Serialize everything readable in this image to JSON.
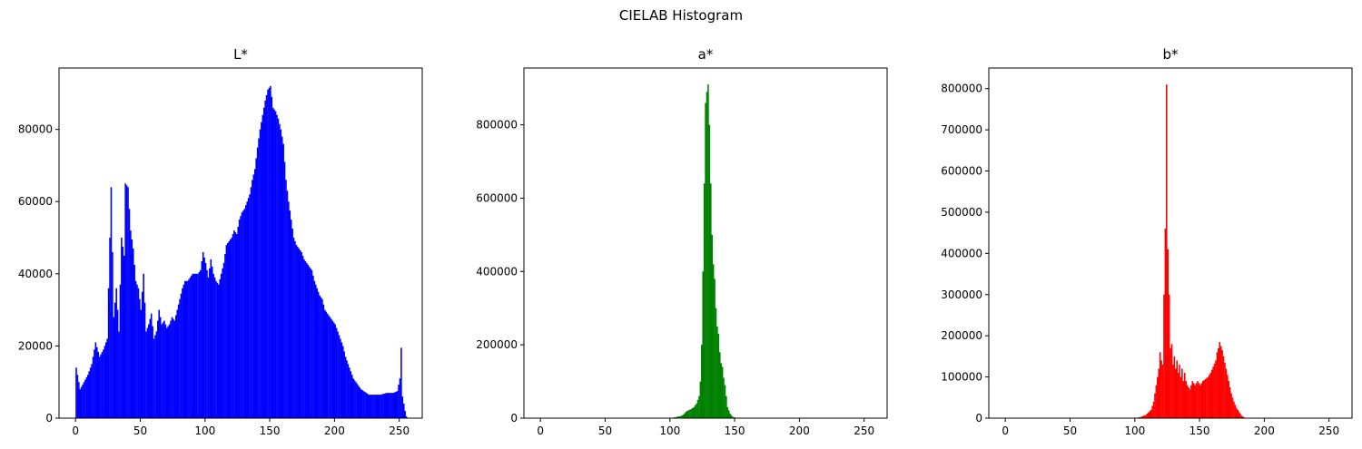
{
  "figure": {
    "title": "CIELAB Histogram"
  },
  "chart_data": [
    {
      "type": "bar",
      "title": "L*",
      "xlabel": "",
      "ylabel": "",
      "color": "#0000ff",
      "xlim": [
        -12.75,
        267.75
      ],
      "ylim": [
        0,
        97000
      ],
      "xticks": [
        0,
        50,
        100,
        150,
        200,
        250
      ],
      "yticks": [
        0,
        20000,
        40000,
        60000,
        80000
      ],
      "bin_width": 1,
      "profile": [
        [
          0,
          14000
        ],
        [
          3,
          8000
        ],
        [
          6,
          10000
        ],
        [
          9,
          12000
        ],
        [
          12,
          15000
        ],
        [
          15,
          21000
        ],
        [
          18,
          17000
        ],
        [
          21,
          19000
        ],
        [
          24,
          22000
        ],
        [
          27,
          64000
        ],
        [
          29,
          28000
        ],
        [
          31,
          36000
        ],
        [
          33,
          24000
        ],
        [
          35,
          50000
        ],
        [
          37,
          45000
        ],
        [
          38,
          65000
        ],
        [
          40,
          64000
        ],
        [
          42,
          52000
        ],
        [
          44,
          47000
        ],
        [
          46,
          38000
        ],
        [
          48,
          36000
        ],
        [
          50,
          30000
        ],
        [
          52,
          40000
        ],
        [
          54,
          24000
        ],
        [
          56,
          26000
        ],
        [
          58,
          29000
        ],
        [
          60,
          22000
        ],
        [
          62,
          24000
        ],
        [
          64,
          30000
        ],
        [
          66,
          26000
        ],
        [
          68,
          27000
        ],
        [
          70,
          25000
        ],
        [
          72,
          26000
        ],
        [
          74,
          28000
        ],
        [
          76,
          27000
        ],
        [
          78,
          30000
        ],
        [
          80,
          33000
        ],
        [
          82,
          36000
        ],
        [
          84,
          38000
        ],
        [
          86,
          38000
        ],
        [
          88,
          39000
        ],
        [
          90,
          40000
        ],
        [
          92,
          40000
        ],
        [
          94,
          40000
        ],
        [
          96,
          41000
        ],
        [
          98,
          46000
        ],
        [
          100,
          43000
        ],
        [
          102,
          39000
        ],
        [
          104,
          44000
        ],
        [
          106,
          40000
        ],
        [
          108,
          38000
        ],
        [
          110,
          37000
        ],
        [
          112,
          40000
        ],
        [
          114,
          43000
        ],
        [
          116,
          48000
        ],
        [
          118,
          49000
        ],
        [
          120,
          50000
        ],
        [
          122,
          52000
        ],
        [
          124,
          51000
        ],
        [
          126,
          55000
        ],
        [
          128,
          57000
        ],
        [
          130,
          58000
        ],
        [
          132,
          60000
        ],
        [
          134,
          62000
        ],
        [
          136,
          66000
        ],
        [
          138,
          69000
        ],
        [
          140,
          75000
        ],
        [
          142,
          80000
        ],
        [
          144,
          84000
        ],
        [
          146,
          88000
        ],
        [
          148,
          91000
        ],
        [
          150,
          92000
        ],
        [
          152,
          86000
        ],
        [
          154,
          85000
        ],
        [
          156,
          83000
        ],
        [
          158,
          80000
        ],
        [
          160,
          76000
        ],
        [
          162,
          66000
        ],
        [
          164,
          60000
        ],
        [
          166,
          55000
        ],
        [
          168,
          50000
        ],
        [
          170,
          48000
        ],
        [
          172,
          47000
        ],
        [
          174,
          46000
        ],
        [
          176,
          44000
        ],
        [
          178,
          43000
        ],
        [
          180,
          42000
        ],
        [
          182,
          41000
        ],
        [
          184,
          38000
        ],
        [
          186,
          36000
        ],
        [
          188,
          34000
        ],
        [
          190,
          33000
        ],
        [
          192,
          30000
        ],
        [
          194,
          29000
        ],
        [
          196,
          28000
        ],
        [
          198,
          27000
        ],
        [
          200,
          26000
        ],
        [
          202,
          24000
        ],
        [
          204,
          22000
        ],
        [
          206,
          20000
        ],
        [
          208,
          17000
        ],
        [
          210,
          15000
        ],
        [
          212,
          13000
        ],
        [
          214,
          11000
        ],
        [
          216,
          10000
        ],
        [
          218,
          9000
        ],
        [
          220,
          8000
        ],
        [
          222,
          7500
        ],
        [
          224,
          7000
        ],
        [
          226,
          6500
        ],
        [
          230,
          6500
        ],
        [
          235,
          6500
        ],
        [
          240,
          7000
        ],
        [
          245,
          7000
        ],
        [
          248,
          7500
        ],
        [
          250,
          11000
        ],
        [
          251,
          19500
        ],
        [
          252,
          6000
        ],
        [
          254,
          2000
        ],
        [
          255,
          500
        ]
      ]
    },
    {
      "type": "bar",
      "title": "a*",
      "xlabel": "",
      "ylabel": "",
      "color": "#008000",
      "xlim": [
        -12.75,
        267.75
      ],
      "ylim": [
        0,
        955000
      ],
      "xticks": [
        0,
        50,
        100,
        150,
        200,
        250
      ],
      "yticks": [
        0,
        200000,
        400000,
        600000,
        800000
      ],
      "bin_width": 1,
      "profile": [
        [
          0,
          0
        ],
        [
          100,
          0
        ],
        [
          104,
          3000
        ],
        [
          108,
          6000
        ],
        [
          110,
          10000
        ],
        [
          112,
          18000
        ],
        [
          114,
          22000
        ],
        [
          116,
          25000
        ],
        [
          118,
          30000
        ],
        [
          120,
          40000
        ],
        [
          122,
          60000
        ],
        [
          123,
          100000
        ],
        [
          124,
          200000
        ],
        [
          125,
          400000
        ],
        [
          126,
          640000
        ],
        [
          127,
          860000
        ],
        [
          128,
          890000
        ],
        [
          129,
          910000
        ],
        [
          130,
          800000
        ],
        [
          131,
          640000
        ],
        [
          132,
          500000
        ],
        [
          133,
          420000
        ],
        [
          134,
          380000
        ],
        [
          135,
          300000
        ],
        [
          136,
          250000
        ],
        [
          137,
          230000
        ],
        [
          138,
          180000
        ],
        [
          139,
          150000
        ],
        [
          140,
          140000
        ],
        [
          141,
          110000
        ],
        [
          142,
          90000
        ],
        [
          143,
          60000
        ],
        [
          144,
          30000
        ],
        [
          146,
          12000
        ],
        [
          148,
          4000
        ],
        [
          150,
          1000
        ],
        [
          152,
          0
        ],
        [
          255,
          0
        ]
      ]
    },
    {
      "type": "bar",
      "title": "b*",
      "xlabel": "",
      "ylabel": "",
      "color": "#ff0000",
      "xlim": [
        -12.75,
        267.75
      ],
      "ylim": [
        0,
        850000
      ],
      "xticks": [
        0,
        50,
        100,
        150,
        200,
        250
      ],
      "yticks": [
        0,
        100000,
        200000,
        300000,
        400000,
        500000,
        600000,
        700000,
        800000
      ],
      "bin_width": 1,
      "profile": [
        [
          0,
          0
        ],
        [
          100,
          0
        ],
        [
          104,
          3000
        ],
        [
          108,
          8000
        ],
        [
          112,
          20000
        ],
        [
          114,
          40000
        ],
        [
          116,
          80000
        ],
        [
          118,
          120000
        ],
        [
          119,
          160000
        ],
        [
          120,
          140000
        ],
        [
          121,
          130000
        ],
        [
          122,
          300000
        ],
        [
          123,
          460000
        ],
        [
          124,
          810000
        ],
        [
          125,
          410000
        ],
        [
          126,
          300000
        ],
        [
          127,
          170000
        ],
        [
          128,
          180000
        ],
        [
          129,
          130000
        ],
        [
          130,
          150000
        ],
        [
          131,
          120000
        ],
        [
          132,
          140000
        ],
        [
          133,
          110000
        ],
        [
          134,
          130000
        ],
        [
          135,
          100000
        ],
        [
          136,
          120000
        ],
        [
          137,
          90000
        ],
        [
          138,
          110000
        ],
        [
          139,
          90000
        ],
        [
          140,
          80000
        ],
        [
          142,
          70000
        ],
        [
          144,
          90000
        ],
        [
          146,
          80000
        ],
        [
          148,
          90000
        ],
        [
          150,
          80000
        ],
        [
          152,
          90000
        ],
        [
          154,
          95000
        ],
        [
          156,
          100000
        ],
        [
          158,
          110000
        ],
        [
          160,
          125000
        ],
        [
          162,
          140000
        ],
        [
          163,
          160000
        ],
        [
          164,
          170000
        ],
        [
          165,
          185000
        ],
        [
          166,
          175000
        ],
        [
          167,
          165000
        ],
        [
          168,
          150000
        ],
        [
          170,
          120000
        ],
        [
          172,
          90000
        ],
        [
          174,
          60000
        ],
        [
          176,
          40000
        ],
        [
          178,
          25000
        ],
        [
          180,
          15000
        ],
        [
          182,
          6000
        ],
        [
          184,
          2000
        ],
        [
          186,
          0
        ],
        [
          255,
          0
        ]
      ]
    }
  ]
}
